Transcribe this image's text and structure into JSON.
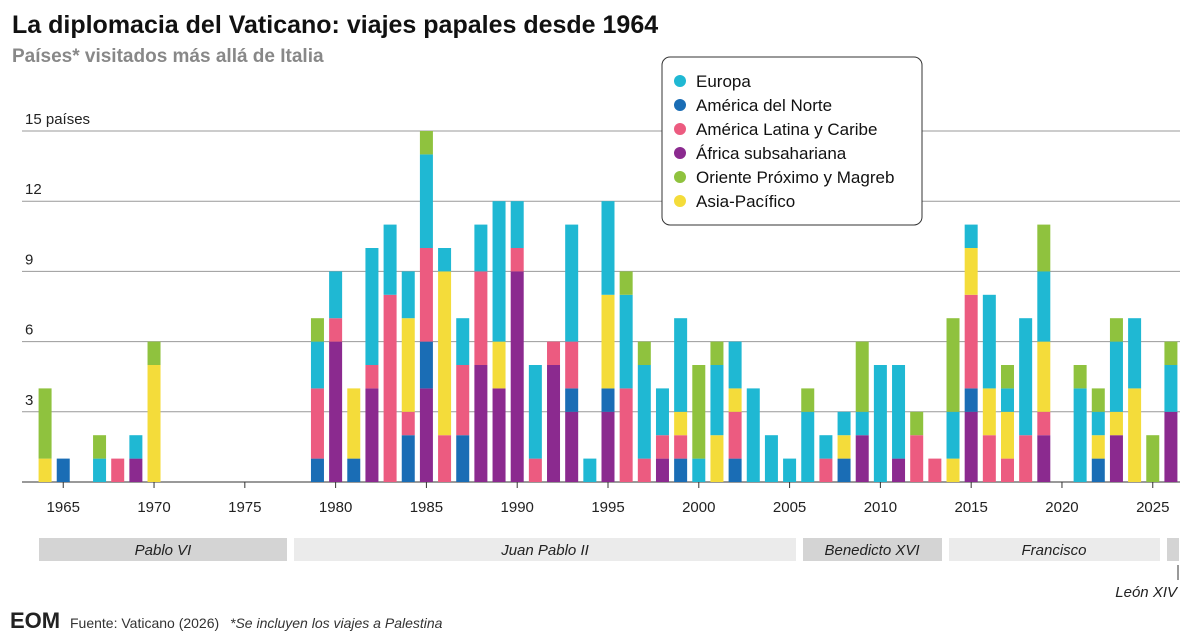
{
  "chart_data": {
    "type": "bar",
    "stacked": true,
    "title": "La diplomacia del Vaticano: viajes papales desde 1964",
    "subtitle": "Países* visitados más allá de Italia",
    "x": [
      1964,
      1965,
      1967,
      1968,
      1969,
      1970,
      1979,
      1980,
      1981,
      1982,
      1983,
      1984,
      1985,
      1986,
      1987,
      1988,
      1989,
      1990,
      1991,
      1992,
      1993,
      1994,
      1995,
      1996,
      1997,
      1998,
      1999,
      2000,
      2001,
      2002,
      2003,
      2004,
      2005,
      2006,
      2007,
      2008,
      2009,
      2010,
      2011,
      2012,
      2013,
      2014,
      2015,
      2016,
      2017,
      2018,
      2019,
      2021,
      2022,
      2023,
      2024,
      2025,
      2026
    ],
    "series": [
      {
        "name": "África subsahariana",
        "color": "#8b2a8f",
        "values": [
          0,
          0,
          0,
          0,
          1,
          0,
          0,
          6,
          0,
          4,
          0,
          0,
          4,
          0,
          0,
          5,
          4,
          9,
          0,
          5,
          3,
          0,
          3,
          0,
          0,
          1,
          0,
          0,
          0,
          0,
          0,
          0,
          0,
          0,
          0,
          0,
          2,
          0,
          1,
          0,
          0,
          0,
          3,
          0,
          0,
          0,
          2,
          0,
          0,
          2,
          0,
          0,
          3
        ]
      },
      {
        "name": "América del Norte",
        "color": "#1a6db5",
        "values": [
          0,
          1,
          0,
          0,
          0,
          0,
          1,
          0,
          1,
          0,
          0,
          2,
          2,
          0,
          2,
          0,
          0,
          0,
          0,
          0,
          1,
          0,
          1,
          0,
          0,
          0,
          1,
          0,
          0,
          1,
          0,
          0,
          0,
          0,
          0,
          1,
          0,
          0,
          0,
          0,
          0,
          0,
          1,
          0,
          0,
          0,
          0,
          0,
          1,
          0,
          0,
          0,
          0
        ]
      },
      {
        "name": "América Latina y Caribe",
        "color": "#ec5b80",
        "values": [
          0,
          0,
          0,
          1,
          0,
          0,
          3,
          1,
          0,
          1,
          8,
          1,
          4,
          2,
          3,
          4,
          0,
          1,
          1,
          1,
          2,
          0,
          0,
          4,
          1,
          1,
          1,
          0,
          0,
          2,
          0,
          0,
          0,
          0,
          1,
          0,
          0,
          0,
          0,
          2,
          1,
          0,
          4,
          2,
          1,
          2,
          1,
          0,
          0,
          0,
          0,
          0,
          0
        ]
      },
      {
        "name": "Asia-Pacífico",
        "color": "#f4dc3a",
        "values": [
          1,
          0,
          0,
          0,
          0,
          5,
          0,
          0,
          3,
          0,
          0,
          4,
          0,
          7,
          0,
          0,
          2,
          0,
          0,
          0,
          0,
          0,
          4,
          0,
          0,
          0,
          1,
          0,
          2,
          1,
          0,
          0,
          0,
          0,
          0,
          1,
          0,
          0,
          0,
          0,
          0,
          1,
          2,
          2,
          2,
          0,
          3,
          0,
          1,
          1,
          4,
          0,
          0
        ]
      },
      {
        "name": "Europa",
        "color": "#1fb8d3",
        "values": [
          0,
          0,
          1,
          0,
          1,
          0,
          2,
          2,
          0,
          5,
          3,
          2,
          4,
          1,
          2,
          2,
          6,
          2,
          4,
          0,
          5,
          1,
          4,
          4,
          4,
          2,
          4,
          1,
          3,
          2,
          4,
          2,
          1,
          3,
          1,
          1,
          1,
          5,
          4,
          0,
          0,
          2,
          1,
          4,
          1,
          5,
          3,
          4,
          1,
          3,
          3,
          0,
          2
        ]
      },
      {
        "name": "Oriente Próximo y Magreb",
        "color": "#8fc23e",
        "values": [
          3,
          0,
          1,
          0,
          0,
          1,
          1,
          0,
          0,
          0,
          0,
          0,
          1,
          0,
          0,
          0,
          0,
          0,
          0,
          0,
          0,
          0,
          0,
          1,
          1,
          0,
          0,
          4,
          1,
          0,
          0,
          0,
          0,
          1,
          0,
          0,
          3,
          0,
          0,
          1,
          0,
          4,
          0,
          0,
          1,
          0,
          2,
          1,
          1,
          1,
          0,
          2,
          1
        ]
      }
    ],
    "legend_order": [
      4,
      1,
      2,
      0,
      5,
      3
    ],
    "xlim": [
      1963.5,
      2026.5
    ],
    "xticks": [
      1965,
      1970,
      1975,
      1980,
      1985,
      1990,
      1995,
      2000,
      2005,
      2010,
      2015,
      2020,
      2025
    ],
    "ylim": [
      0,
      15
    ],
    "yticks": [
      3,
      6,
      9,
      12,
      {
        "value": 15,
        "label": "15 países"
      }
    ],
    "grid": true,
    "eras": [
      "Pablo VI",
      "Juan Pablo II",
      "Benedicto XVI",
      "Francisco",
      "León XIV"
    ],
    "logo": "EOM",
    "source": "Fuente: Vaticano (2026)",
    "note": "*Se incluyen los viajes a Palestina"
  }
}
